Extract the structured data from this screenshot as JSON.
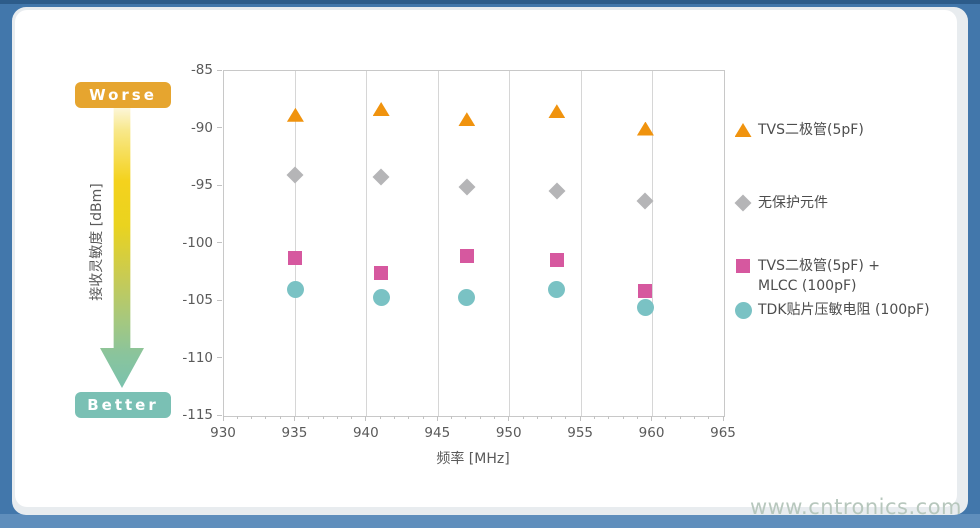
{
  "annotations": {
    "worse_label": "Worse",
    "better_label": "Better"
  },
  "watermark": "www.cntronics.com",
  "colors": {
    "frame_blue": "#4277ab",
    "frame_top_blue": "#2d5c8a",
    "frame_bottom_blue": "#5f8ebc",
    "card_edge": "#e8ecef",
    "worse_badge": "#e6a52f",
    "better_badge": "#7ac0b4",
    "series_tvs_orange": "#f0930e",
    "series_unprotected_gray": "#b5b5b7",
    "series_tvs_mlcc_pink": "#d6589f",
    "series_tdk_teal": "#7ac2c4",
    "gridline": "#d6d6d6",
    "axis_text": "#5a5a5a"
  },
  "chart_data": {
    "type": "scatter",
    "title": "",
    "xlabel": "频率 [MHz]",
    "ylabel": "接收灵敏度 [dBm]",
    "xlim": [
      930,
      965
    ],
    "ylim": [
      -115,
      -85
    ],
    "x_ticks": [
      930,
      935,
      940,
      945,
      950,
      955,
      960,
      965
    ],
    "x_minor_tick_step": 1,
    "x_gridlines": [
      935,
      940,
      945,
      950,
      955,
      960
    ],
    "y_ticks": [
      -85,
      -90,
      -95,
      -100,
      -105,
      -110,
      -115
    ],
    "grid": "vertical-only",
    "legend_position": "right",
    "x": [
      935,
      941,
      947,
      953.3,
      959.5
    ],
    "series": [
      {
        "name": "TVS二极管(5pF)",
        "legend_lines": [
          "TVS二极管(5pF)"
        ],
        "marker": "triangle",
        "color": "#f0930e",
        "values": [
          -88.8,
          -88.3,
          -89.2,
          -88.5,
          -90.0
        ]
      },
      {
        "name": "无保护元件",
        "legend_lines": [
          "无保护元件"
        ],
        "marker": "diamond",
        "color": "#b5b5b7",
        "values": [
          -94.0,
          -94.2,
          -95.1,
          -95.4,
          -96.3
        ]
      },
      {
        "name": "TVS二极管(5pF) + MLCC (100pF)",
        "legend_lines": [
          "TVS二极管(5pF) +",
          "MLCC (100pF)"
        ],
        "marker": "square",
        "color": "#d6589f",
        "values": [
          -101.3,
          -102.6,
          -101.1,
          -101.4,
          -104.1
        ]
      },
      {
        "name": "TDK贴片压敏电阻 (100pF)",
        "legend_lines": [
          "TDK贴片压敏电阻 (100pF)"
        ],
        "marker": "circle",
        "color": "#7ac2c4",
        "values": [
          -104.0,
          -104.7,
          -104.7,
          -104.0,
          -105.6
        ]
      }
    ]
  }
}
